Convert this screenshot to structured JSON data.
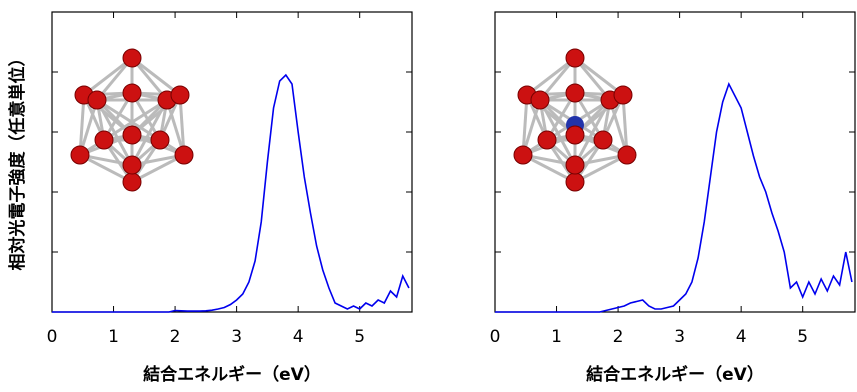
{
  "chart_data": [
    {
      "type": "line",
      "y_label": "相対光電子強度（任意単位）",
      "x_label": "結合エネルギー（eV）",
      "xlim": [
        0,
        5.85
      ],
      "xticks": [
        0,
        1,
        2,
        3,
        4,
        5
      ],
      "ylim": [
        0,
        1
      ],
      "yticks": [
        0,
        0.2,
        0.4,
        0.6,
        0.8,
        1
      ],
      "series": [
        {
          "color": "#0000ee",
          "x": [
            0,
            0.1,
            0.2,
            0.3,
            0.4,
            0.5,
            0.6,
            0.7,
            0.8,
            0.9,
            1,
            1.1,
            1.2,
            1.3,
            1.4,
            1.5,
            1.6,
            1.7,
            1.8,
            1.9,
            2,
            2.1,
            2.2,
            2.3,
            2.4,
            2.5,
            2.6,
            2.7,
            2.8,
            2.9,
            3,
            3.1,
            3.2,
            3.3,
            3.4,
            3.5,
            3.6,
            3.7,
            3.8,
            3.9,
            4,
            4.1,
            4.2,
            4.3,
            4.4,
            4.5,
            4.6,
            4.7,
            4.8,
            4.9,
            5,
            5.1,
            5.2,
            5.3,
            5.4,
            5.5,
            5.6,
            5.7,
            5.8
          ],
          "values": [
            0,
            0,
            0,
            0,
            0,
            0,
            0,
            0,
            0,
            0,
            0,
            0,
            0,
            0,
            0,
            0,
            0,
            0,
            0,
            0,
            0.005,
            0.004,
            0.003,
            0.003,
            0.003,
            0.004,
            0.006,
            0.01,
            0.015,
            0.025,
            0.04,
            0.06,
            0.1,
            0.17,
            0.3,
            0.5,
            0.68,
            0.77,
            0.79,
            0.76,
            0.6,
            0.45,
            0.33,
            0.22,
            0.14,
            0.08,
            0.03,
            0.02,
            0.01,
            0.02,
            0.01,
            0.03,
            0.02,
            0.04,
            0.03,
            0.07,
            0.05,
            0.12,
            0.08
          ]
        }
      ]
    },
    {
      "type": "line",
      "x_label": "結合エネルギー（eV）",
      "xlim": [
        0,
        5.85
      ],
      "xticks": [
        0,
        1,
        2,
        3,
        4,
        5
      ],
      "ylim": [
        0,
        1
      ],
      "yticks": [
        0,
        0.2,
        0.4,
        0.6,
        0.8,
        1
      ],
      "series": [
        {
          "color": "#0000ee",
          "x": [
            0,
            0.1,
            0.2,
            0.3,
            0.4,
            0.5,
            0.6,
            0.7,
            0.8,
            0.9,
            1,
            1.1,
            1.2,
            1.3,
            1.4,
            1.5,
            1.6,
            1.7,
            1.8,
            1.9,
            2,
            2.1,
            2.2,
            2.3,
            2.4,
            2.5,
            2.6,
            2.7,
            2.8,
            2.9,
            3,
            3.1,
            3.2,
            3.3,
            3.4,
            3.5,
            3.6,
            3.7,
            3.8,
            3.9,
            4,
            4.1,
            4.2,
            4.3,
            4.4,
            4.5,
            4.6,
            4.7,
            4.8,
            4.9,
            5,
            5.1,
            5.2,
            5.3,
            5.4,
            5.5,
            5.6,
            5.7,
            5.8
          ],
          "values": [
            0,
            0,
            0,
            0,
            0,
            0,
            0,
            0,
            0,
            0,
            0,
            0,
            0,
            0,
            0,
            0,
            0,
            0,
            0.005,
            0.01,
            0.015,
            0.02,
            0.03,
            0.035,
            0.04,
            0.02,
            0.01,
            0.01,
            0.015,
            0.02,
            0.04,
            0.06,
            0.1,
            0.18,
            0.3,
            0.45,
            0.6,
            0.7,
            0.76,
            0.72,
            0.68,
            0.6,
            0.52,
            0.45,
            0.4,
            0.33,
            0.27,
            0.2,
            0.08,
            0.1,
            0.05,
            0.1,
            0.06,
            0.11,
            0.07,
            0.12,
            0.09,
            0.2,
            0.1
          ]
        }
      ]
    }
  ]
}
